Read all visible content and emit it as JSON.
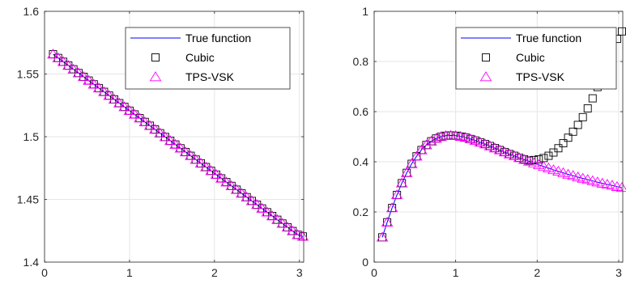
{
  "colors": {
    "true_function": "#0000ff",
    "cubic": "#000000",
    "tps_vsk": "#ff00ff",
    "grid": "#e6e6e6",
    "axes": "#262626"
  },
  "chart_data": [
    {
      "type": "line",
      "xlim": [
        0,
        3.05
      ],
      "ylim": [
        1.4,
        1.6
      ],
      "grid": true,
      "legend_position": "top-right",
      "x_ticks": [
        "0",
        "1",
        "2",
        "3"
      ],
      "x_tick_values": [
        0,
        1,
        2,
        3
      ],
      "y_ticks": [
        "1.4",
        "1.45",
        "1.5",
        "1.55",
        "1.6"
      ],
      "y_tick_values": [
        1.4,
        1.45,
        1.5,
        1.55,
        1.6
      ],
      "x": [
        0.1,
        0.16,
        0.22,
        0.28,
        0.34,
        0.4,
        0.46,
        0.52,
        0.58,
        0.64,
        0.7,
        0.76,
        0.82,
        0.88,
        0.94,
        1.0,
        1.06,
        1.12,
        1.18,
        1.24,
        1.3,
        1.36,
        1.42,
        1.48,
        1.54,
        1.6,
        1.66,
        1.72,
        1.78,
        1.84,
        1.9,
        1.96,
        2.02,
        2.08,
        2.14,
        2.2,
        2.26,
        2.32,
        2.38,
        2.44,
        2.5,
        2.56,
        2.62,
        2.68,
        2.74,
        2.8,
        2.86,
        2.92,
        2.98,
        3.04
      ],
      "series": [
        {
          "name": "True function",
          "marker": "line",
          "y": [
            1.5658,
            1.5628,
            1.5598,
            1.5568,
            1.5538,
            1.5508,
            1.5478,
            1.5448,
            1.5418,
            1.5388,
            1.5358,
            1.5328,
            1.5298,
            1.5268,
            1.5238,
            1.5208,
            1.5178,
            1.5148,
            1.5118,
            1.5088,
            1.5058,
            1.5028,
            1.4998,
            1.4968,
            1.4938,
            1.4908,
            1.4878,
            1.4848,
            1.4818,
            1.4788,
            1.4758,
            1.4728,
            1.4698,
            1.4668,
            1.4638,
            1.4608,
            1.4578,
            1.4548,
            1.4518,
            1.4488,
            1.4458,
            1.4428,
            1.4398,
            1.4368,
            1.4338,
            1.4308,
            1.4278,
            1.4248,
            1.4218,
            1.4205
          ]
        },
        {
          "name": "Cubic",
          "marker": "square",
          "y": [
            1.5658,
            1.5628,
            1.5598,
            1.5568,
            1.5538,
            1.5508,
            1.5478,
            1.5448,
            1.5418,
            1.5388,
            1.5358,
            1.5328,
            1.5298,
            1.5268,
            1.5238,
            1.5208,
            1.5178,
            1.5148,
            1.5118,
            1.5088,
            1.5058,
            1.5028,
            1.4998,
            1.4968,
            1.4938,
            1.4908,
            1.4878,
            1.4848,
            1.4818,
            1.4788,
            1.4758,
            1.4728,
            1.4698,
            1.4668,
            1.4638,
            1.4608,
            1.4578,
            1.4548,
            1.4518,
            1.4488,
            1.4458,
            1.4428,
            1.4398,
            1.4368,
            1.4338,
            1.4308,
            1.4278,
            1.4248,
            1.4218,
            1.4205
          ]
        },
        {
          "name": "TPS-VSK",
          "marker": "triangle",
          "y": [
            1.5658,
            1.5628,
            1.5598,
            1.5568,
            1.5538,
            1.5508,
            1.5478,
            1.5448,
            1.5418,
            1.5388,
            1.5358,
            1.5328,
            1.5298,
            1.5268,
            1.5238,
            1.5208,
            1.5178,
            1.5148,
            1.5118,
            1.5088,
            1.5058,
            1.5028,
            1.4998,
            1.4968,
            1.4938,
            1.4908,
            1.4878,
            1.4848,
            1.4818,
            1.4788,
            1.4758,
            1.4728,
            1.4698,
            1.4668,
            1.4638,
            1.4608,
            1.4578,
            1.4548,
            1.4518,
            1.4488,
            1.4458,
            1.4428,
            1.4398,
            1.4368,
            1.4338,
            1.4308,
            1.4278,
            1.4248,
            1.4218,
            1.4205
          ]
        }
      ]
    },
    {
      "type": "line",
      "xlim": [
        0,
        3.05
      ],
      "ylim": [
        0,
        1
      ],
      "grid": true,
      "legend_position": "top-right",
      "x_ticks": [
        "0",
        "1",
        "2",
        "3"
      ],
      "x_tick_values": [
        0,
        1,
        2,
        3
      ],
      "y_ticks": [
        "0",
        "0.2",
        "0.4",
        "0.6",
        "0.8",
        "1"
      ],
      "y_tick_values": [
        0,
        0.2,
        0.4,
        0.6,
        0.8,
        1
      ],
      "x": [
        0.1,
        0.16,
        0.22,
        0.28,
        0.34,
        0.4,
        0.46,
        0.52,
        0.58,
        0.64,
        0.7,
        0.76,
        0.82,
        0.88,
        0.94,
        1.0,
        1.06,
        1.12,
        1.18,
        1.24,
        1.3,
        1.36,
        1.42,
        1.48,
        1.54,
        1.6,
        1.66,
        1.72,
        1.78,
        1.84,
        1.9,
        1.96,
        2.02,
        2.08,
        2.14,
        2.2,
        2.26,
        2.32,
        2.38,
        2.44,
        2.5,
        2.56,
        2.62,
        2.68,
        2.74,
        2.8,
        2.86,
        2.92,
        2.98,
        3.04
      ],
      "series": [
        {
          "name": "True function",
          "marker": "line",
          "y": [
            0.099,
            0.159,
            0.216,
            0.268,
            0.315,
            0.356,
            0.392,
            0.422,
            0.447,
            0.467,
            0.482,
            0.493,
            0.5,
            0.504,
            0.505,
            0.504,
            0.501,
            0.497,
            0.491,
            0.485,
            0.478,
            0.471,
            0.463,
            0.455,
            0.447,
            0.439,
            0.431,
            0.424,
            0.416,
            0.409,
            0.402,
            0.395,
            0.388,
            0.381,
            0.375,
            0.368,
            0.362,
            0.356,
            0.35,
            0.345,
            0.339,
            0.334,
            0.329,
            0.324,
            0.319,
            0.314,
            0.31,
            0.306,
            0.301,
            0.297
          ]
        },
        {
          "name": "Cubic",
          "marker": "square",
          "y": [
            0.099,
            0.159,
            0.216,
            0.268,
            0.315,
            0.356,
            0.392,
            0.422,
            0.447,
            0.467,
            0.482,
            0.493,
            0.5,
            0.504,
            0.505,
            0.504,
            0.501,
            0.497,
            0.491,
            0.485,
            0.478,
            0.471,
            0.463,
            0.455,
            0.447,
            0.439,
            0.431,
            0.424,
            0.416,
            0.41,
            0.405,
            0.407,
            0.41,
            0.415,
            0.424,
            0.437,
            0.454,
            0.474,
            0.496,
            0.52,
            0.547,
            0.578,
            0.613,
            0.653,
            0.698,
            0.745,
            0.795,
            0.845,
            0.89,
            0.92
          ]
        },
        {
          "name": "TPS-VSK",
          "marker": "triangle",
          "y": [
            0.099,
            0.159,
            0.216,
            0.268,
            0.315,
            0.356,
            0.392,
            0.422,
            0.447,
            0.467,
            0.482,
            0.493,
            0.5,
            0.504,
            0.505,
            0.504,
            0.501,
            0.497,
            0.491,
            0.485,
            0.478,
            0.471,
            0.463,
            0.455,
            0.447,
            0.439,
            0.431,
            0.424,
            0.416,
            0.409,
            0.402,
            0.395,
            0.388,
            0.381,
            0.375,
            0.368,
            0.362,
            0.356,
            0.35,
            0.345,
            0.339,
            0.334,
            0.329,
            0.324,
            0.319,
            0.314,
            0.31,
            0.306,
            0.301,
            0.297
          ]
        }
      ]
    }
  ]
}
